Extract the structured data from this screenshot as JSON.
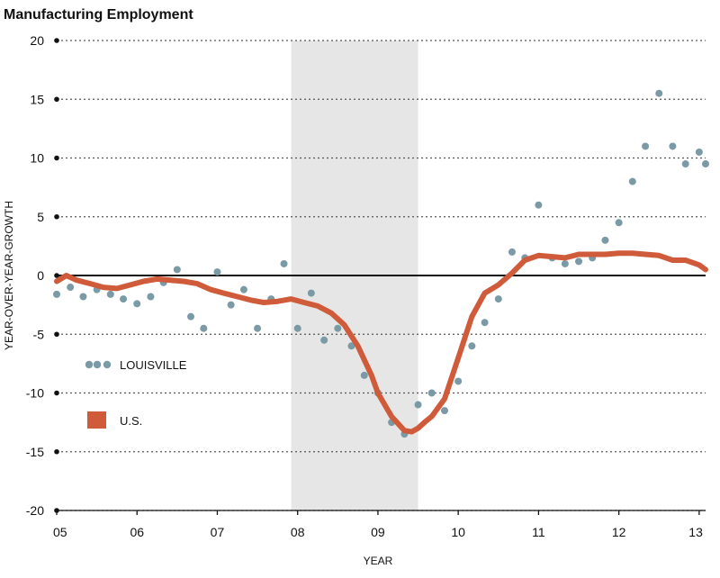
{
  "chart_data": {
    "type": "line",
    "title": "Manufacturing Employment",
    "xlabel": "YEAR",
    "ylabel": "YEAR-OVER-YEAR-GROWTH",
    "xlim": [
      2005.0,
      2013.08
    ],
    "ylim": [
      -20,
      20
    ],
    "x_ticks": [
      2005,
      2006,
      2007,
      2008,
      2009,
      2010,
      2011,
      2012,
      2013
    ],
    "x_tick_labels": [
      "05",
      "06",
      "07",
      "08",
      "09",
      "10",
      "11",
      "12",
      "13"
    ],
    "y_ticks": [
      20,
      15,
      10,
      5,
      0,
      -5,
      -10,
      -15,
      -20
    ],
    "y_tick_labels": [
      "20",
      "15",
      "10",
      "5",
      "0",
      "-5",
      "-10",
      "-15",
      "-20"
    ],
    "grid": "horizontal dotted",
    "recession_shading": {
      "start": 2007.92,
      "end": 2009.5,
      "color": "#e6e6e6"
    },
    "legend_position": "left-middle",
    "series": [
      {
        "name": "LOUISVILLE",
        "style": "dotted",
        "color": "#7a9aa6",
        "x": [
          2005.0,
          2005.17,
          2005.33,
          2005.5,
          2005.67,
          2005.83,
          2006.0,
          2006.17,
          2006.33,
          2006.5,
          2006.67,
          2006.83,
          2007.0,
          2007.17,
          2007.33,
          2007.5,
          2007.67,
          2007.83,
          2008.0,
          2008.17,
          2008.33,
          2008.5,
          2008.67,
          2008.83,
          2009.0,
          2009.17,
          2009.33,
          2009.5,
          2009.67,
          2009.83,
          2010.0,
          2010.17,
          2010.33,
          2010.5,
          2010.67,
          2010.83,
          2011.0,
          2011.17,
          2011.33,
          2011.5,
          2011.67,
          2011.83,
          2012.0,
          2012.17,
          2012.33,
          2012.5,
          2012.67,
          2012.83,
          2013.0,
          2013.08
        ],
        "y": [
          -1.6,
          -1.0,
          -1.8,
          -1.2,
          -1.6,
          -2.0,
          -2.4,
          -1.8,
          -0.6,
          0.5,
          -3.5,
          -4.5,
          0.3,
          -2.5,
          -1.2,
          -4.5,
          -2.0,
          1.0,
          -4.5,
          -1.5,
          -5.5,
          -4.5,
          -6.0,
          -8.5,
          -10.0,
          -12.5,
          -13.5,
          -11.0,
          -10.0,
          -11.5,
          -9.0,
          -6.0,
          -4.0,
          -2.0,
          2.0,
          1.5,
          6.0,
          1.5,
          1.0,
          1.2,
          1.5,
          3.0,
          4.5,
          8.0,
          11.0,
          15.5,
          11.0,
          9.5,
          10.5,
          9.5
        ]
      },
      {
        "name": "U.S.",
        "style": "solid",
        "color": "#cf5b3a",
        "x": [
          2005.0,
          2005.12,
          2005.25,
          2005.42,
          2005.58,
          2005.75,
          2005.92,
          2006.08,
          2006.25,
          2006.42,
          2006.58,
          2006.75,
          2006.92,
          2007.08,
          2007.25,
          2007.42,
          2007.58,
          2007.75,
          2007.92,
          2008.08,
          2008.25,
          2008.42,
          2008.58,
          2008.75,
          2008.92,
          2009.0,
          2009.17,
          2009.33,
          2009.42,
          2009.5,
          2009.58,
          2009.67,
          2009.83,
          2010.0,
          2010.17,
          2010.33,
          2010.5,
          2010.67,
          2010.83,
          2011.0,
          2011.17,
          2011.33,
          2011.5,
          2011.67,
          2011.83,
          2012.0,
          2012.17,
          2012.33,
          2012.5,
          2012.67,
          2012.83,
          2013.0,
          2013.08
        ],
        "y": [
          -0.5,
          0.0,
          -0.4,
          -0.7,
          -1.0,
          -1.1,
          -0.8,
          -0.5,
          -0.3,
          -0.4,
          -0.5,
          -0.7,
          -1.2,
          -1.5,
          -1.8,
          -2.1,
          -2.3,
          -2.2,
          -2.0,
          -2.3,
          -2.6,
          -3.2,
          -4.2,
          -6.0,
          -8.5,
          -10.0,
          -12.0,
          -13.2,
          -13.3,
          -13.0,
          -12.5,
          -12.0,
          -10.5,
          -7.0,
          -3.5,
          -1.5,
          -0.8,
          0.2,
          1.3,
          1.7,
          1.6,
          1.5,
          1.8,
          1.8,
          1.8,
          1.9,
          1.9,
          1.8,
          1.7,
          1.3,
          1.3,
          0.9,
          0.5
        ]
      }
    ]
  },
  "legend": {
    "louisville_label": "LOUISVILLE",
    "us_label": "U.S."
  }
}
